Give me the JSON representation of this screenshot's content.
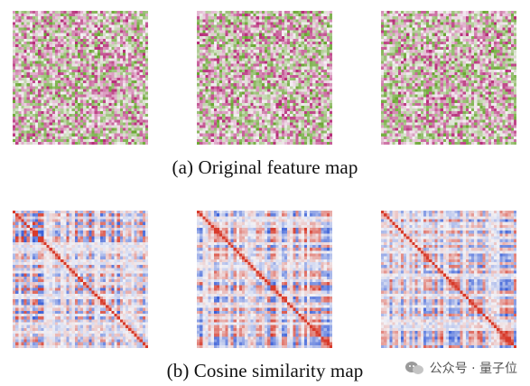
{
  "captions": {
    "a": "(a) Original feature map",
    "b": "(b) Cosine similarity map"
  },
  "panel_groups": [
    {
      "id": "original",
      "style": "pink-green",
      "panels": 3
    },
    {
      "id": "cosine",
      "style": "blue-red",
      "panels": 3
    }
  ],
  "colors": {
    "green": "#6aa832",
    "magenta": "#b0186c",
    "blue": "#3a60d8",
    "red": "#d83a2a",
    "neutral": "#f5f0f5"
  },
  "watermark": {
    "text": "公众号 · 量子位",
    "icon": "wechat-icon"
  }
}
